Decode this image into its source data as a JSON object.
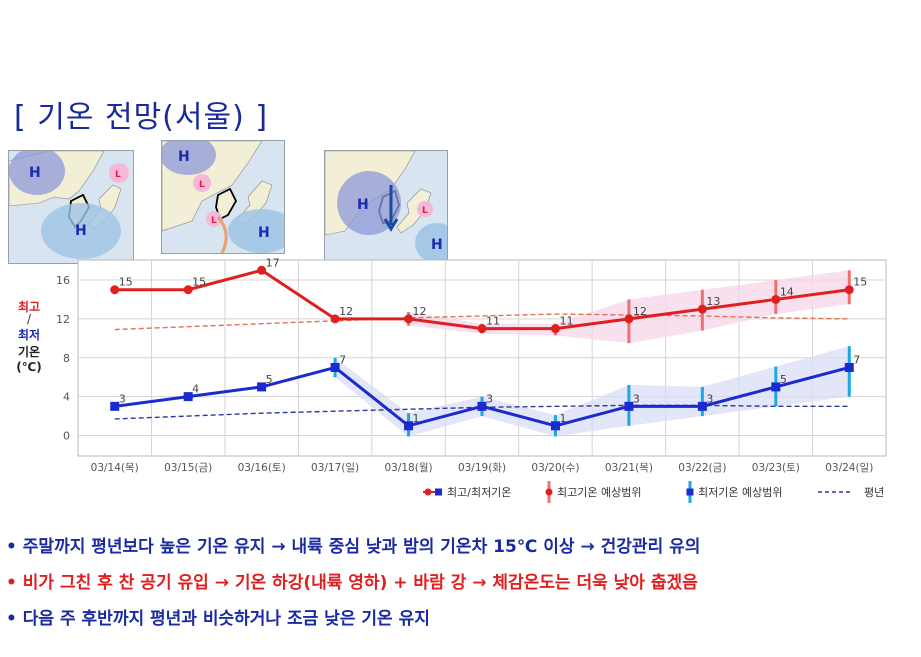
{
  "title": "[ 기온 전망(서울) ]",
  "maps": [
    {
      "labels": [
        "H",
        "H",
        "L"
      ]
    },
    {
      "labels": [
        "H",
        "L",
        "L",
        "H"
      ]
    },
    {
      "labels": [
        "H",
        "L",
        "H"
      ]
    }
  ],
  "y_axis_label": {
    "max": "최고",
    "sep": "/",
    "min": "최저",
    "name": "기온",
    "unit": "(℃)"
  },
  "legend": {
    "maxmin": "최고/최저기온",
    "max_range": "최고기온 예상범위",
    "min_range": "최저기온 예상범위",
    "normal": "평년"
  },
  "colors": {
    "max": "#e02020",
    "min": "#1a2ad0",
    "max_band": "#f6d6ea",
    "min_band": "#d8ddf6",
    "min_bar": "#19a8e0",
    "max_bar": "#f07070"
  },
  "chart_data": {
    "type": "line",
    "categories": [
      "03/14(목)",
      "03/15(금)",
      "03/16(토)",
      "03/17(일)",
      "03/18(월)",
      "03/19(화)",
      "03/20(수)",
      "03/21(목)",
      "03/22(금)",
      "03/23(토)",
      "03/24(일)"
    ],
    "ylim": [
      -1,
      17
    ],
    "yticks": [
      0,
      4,
      8,
      12,
      16
    ],
    "series": [
      {
        "name": "최고기온",
        "values": [
          15,
          15,
          17,
          12,
          12,
          11,
          11,
          12,
          13,
          14,
          15
        ]
      },
      {
        "name": "최저기온",
        "values": [
          3,
          4,
          5,
          7,
          1,
          3,
          1,
          3,
          3,
          5,
          7
        ]
      }
    ],
    "max_range": [
      null,
      null,
      null,
      null,
      [
        11.3,
        12.7
      ],
      [
        10.5,
        11.5
      ],
      [
        10.3,
        11.5
      ],
      [
        9.5,
        14
      ],
      [
        10.8,
        15
      ],
      [
        12.5,
        16
      ],
      [
        13.5,
        17
      ]
    ],
    "min_range": [
      null,
      null,
      null,
      [
        6,
        8
      ],
      [
        -0.1,
        2.3
      ],
      [
        2,
        4
      ],
      [
        -0.1,
        2.1
      ],
      [
        1,
        5.2
      ],
      [
        2,
        5
      ],
      [
        3,
        7.1
      ],
      [
        4,
        9.2
      ]
    ],
    "normal_max": [
      10.9,
      11.2,
      11.5,
      11.8,
      12.1,
      12.3,
      12.5,
      12.4,
      12.3,
      12.1,
      12
    ],
    "normal_min": [
      1.7,
      2,
      2.3,
      2.5,
      2.7,
      2.9,
      3,
      3.1,
      3.1,
      3,
      3
    ]
  },
  "bullets": [
    "• 주말까지 평년보다 높은 기온 유지 → 내륙 중심 낮과 밤의 기온차 15℃ 이상 → 건강관리 유의",
    "• 비가 그친 후 찬 공기 유입 → 기온 하강(내륙 영하) + 바람 강 → 체감온도는 더욱 낮아 춥겠음",
    "• 다음 주 후반까지 평년과 비슷하거나 조금 낮은 기온 유지"
  ]
}
